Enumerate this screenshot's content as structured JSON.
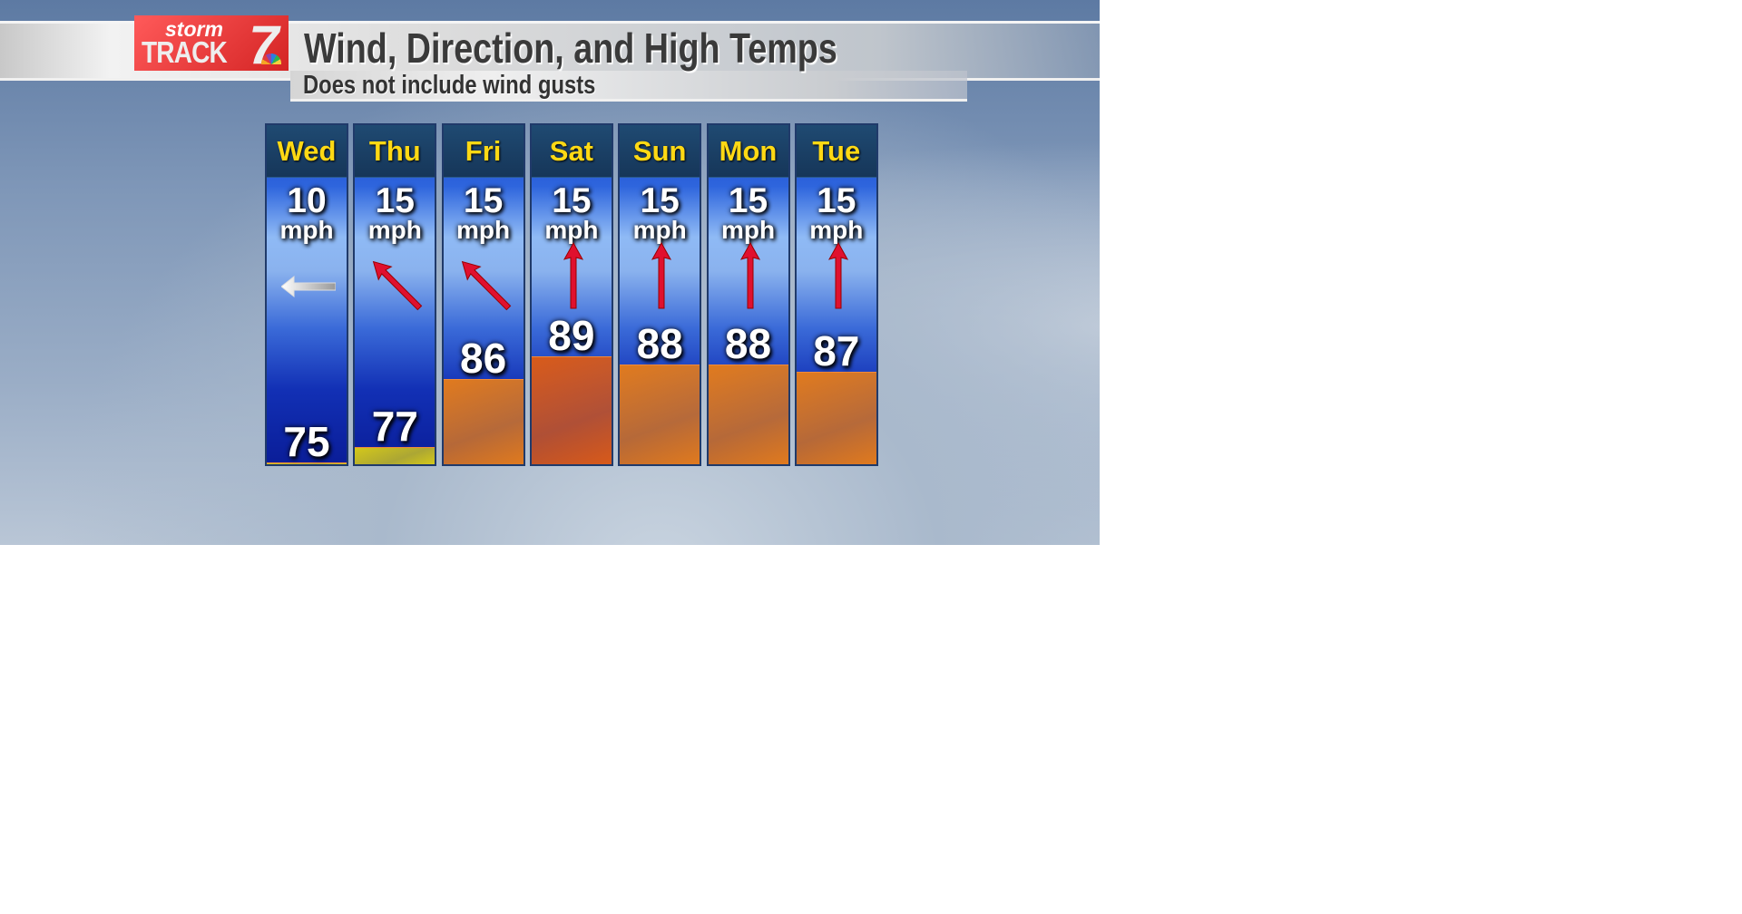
{
  "header": {
    "logo": {
      "line1": "storm",
      "line2": "TRACK",
      "number": "7"
    },
    "title": "Wind, Direction, and High Temps",
    "subtitle": "Does not include wind gusts"
  },
  "colors": {
    "day_label": "#ffd914",
    "arrow": "#e0102e",
    "arrow_light": "#ffffff",
    "bar_warm": "#e07a1e",
    "bar_hot": "#d85a1a",
    "bar_mild": "#d4c81a"
  },
  "days": [
    {
      "day": "Wed",
      "wind_speed": "10",
      "unit": "mph",
      "direction_icon": "arrow-left-icon",
      "direction": "left",
      "high": 75
    },
    {
      "day": "Thu",
      "wind_speed": "15",
      "unit": "mph",
      "direction_icon": "arrow-up-left-icon",
      "direction": "up-left",
      "high": 77
    },
    {
      "day": "Fri",
      "wind_speed": "15",
      "unit": "mph",
      "direction_icon": "arrow-up-left-icon",
      "direction": "up-left",
      "high": 86
    },
    {
      "day": "Sat",
      "wind_speed": "15",
      "unit": "mph",
      "direction_icon": "arrow-up-icon",
      "direction": "up",
      "high": 89
    },
    {
      "day": "Sun",
      "wind_speed": "15",
      "unit": "mph",
      "direction_icon": "arrow-up-icon",
      "direction": "up",
      "high": 88
    },
    {
      "day": "Mon",
      "wind_speed": "15",
      "unit": "mph",
      "direction_icon": "arrow-up-icon",
      "direction": "up",
      "high": 88
    },
    {
      "day": "Tue",
      "wind_speed": "15",
      "unit": "mph",
      "direction_icon": "arrow-up-icon",
      "direction": "up",
      "high": 87
    }
  ]
}
